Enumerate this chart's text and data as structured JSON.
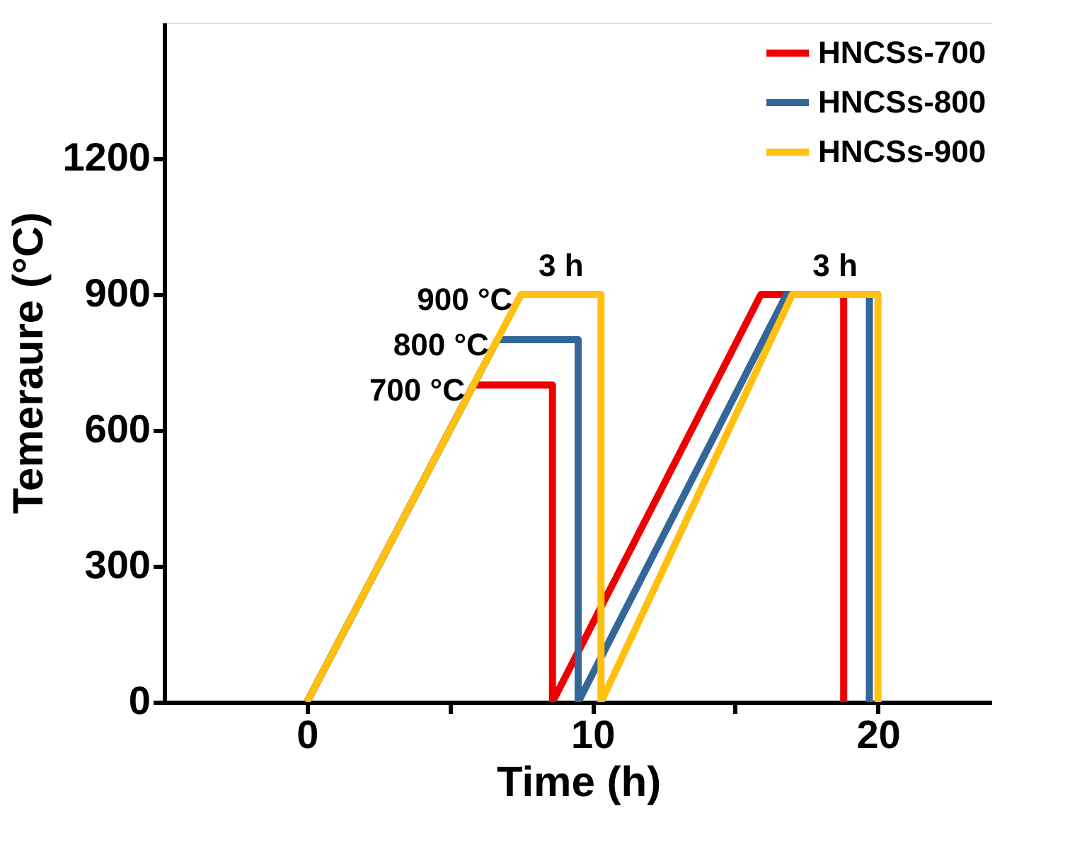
{
  "chart_data": {
    "type": "line",
    "xlabel": "Time (h)",
    "ylabel": "Temeraure (°C)",
    "xlim": [
      -5,
      24
    ],
    "xticks": [
      0,
      {
        "value": 5,
        "label": null
      },
      10,
      {
        "value": 15,
        "label": null
      },
      20
    ],
    "ylim": [
      0,
      1500
    ],
    "yticks": [
      0,
      300,
      600,
      900,
      1200
    ],
    "grid": false,
    "legend": "top right",
    "marker": "none",
    "line_style": "solid",
    "series": [
      {
        "name": "HNCSs-700",
        "color": "#ee0000",
        "x": [
          0,
          5.83,
          8.6,
          8.6,
          15.9,
          18.8,
          18.8
        ],
        "values": [
          0,
          700,
          700,
          0,
          900,
          900,
          0
        ]
      },
      {
        "name": "HNCSs-800",
        "color": "#336699",
        "x": [
          0,
          6.67,
          9.5,
          9.5,
          16.8,
          19.7,
          19.7
        ],
        "values": [
          0,
          800,
          800,
          0,
          900,
          900,
          0
        ]
      },
      {
        "name": "HNCSs-900",
        "color": "#ffc010",
        "x": [
          0,
          7.5,
          10.3,
          10.3,
          17.0,
          20.0,
          20.0
        ],
        "values": [
          0,
          900,
          900,
          0,
          900,
          900,
          0
        ]
      }
    ],
    "annotations": [
      {
        "text": "900 °C",
        "x": 7.5,
        "y": 900
      },
      {
        "text": "800 °C",
        "x": 6.67,
        "y": 800
      },
      {
        "text": "700 °C",
        "x": 5.83,
        "y": 700
      },
      {
        "text": "3 h",
        "x": 8.9,
        "y": 900
      },
      {
        "text": "3 h",
        "x": 18.5,
        "y": 900
      }
    ]
  }
}
